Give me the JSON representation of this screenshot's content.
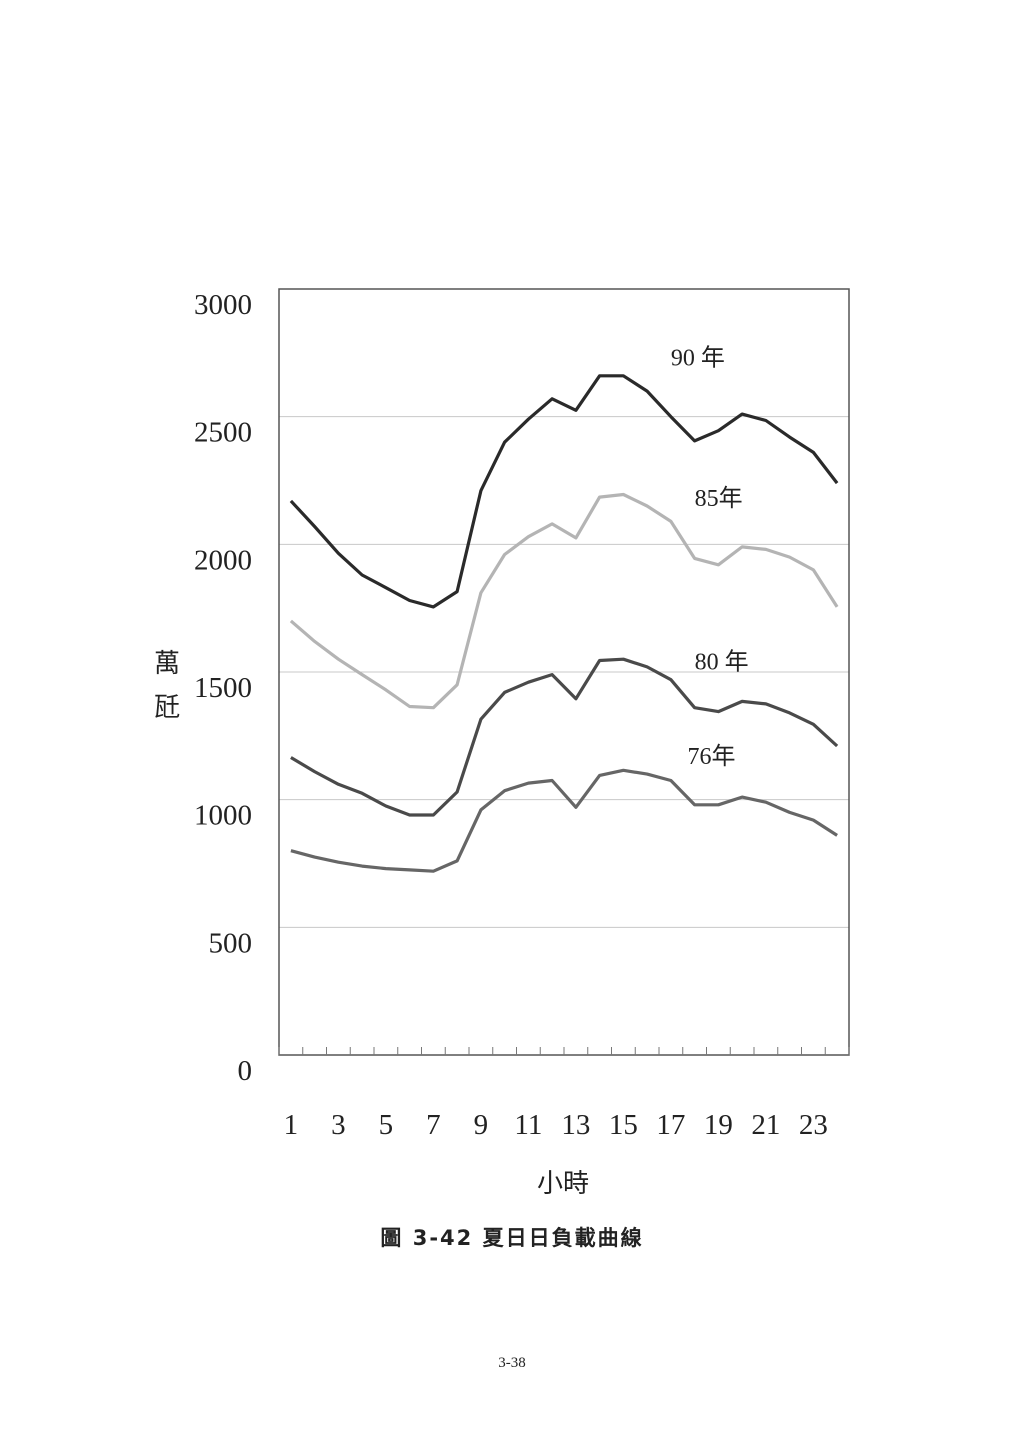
{
  "chart_data": {
    "type": "line",
    "title": "",
    "xlabel": "小時",
    "ylabel": "萬瓩",
    "ylim": [
      0,
      3000
    ],
    "xlim": [
      0.5,
      24.5
    ],
    "y_ticks": [
      0,
      500,
      1000,
      1500,
      2000,
      2500,
      3000
    ],
    "x_ticks": [
      1,
      3,
      5,
      7,
      9,
      11,
      13,
      15,
      17,
      19,
      21,
      23
    ],
    "grid": "horizontal",
    "x": [
      1,
      2,
      3,
      4,
      5,
      6,
      7,
      8,
      9,
      10,
      11,
      12,
      13,
      14,
      15,
      16,
      17,
      18,
      19,
      20,
      21,
      22,
      23,
      24
    ],
    "series": [
      {
        "name": "90 年",
        "color": "#2a2a2a",
        "values": [
          2170,
          2070,
          1965,
          1880,
          1830,
          1780,
          1755,
          1815,
          2210,
          2400,
          2490,
          2570,
          2525,
          2660,
          2660,
          2600,
          2500,
          2405,
          2445,
          2510,
          2485,
          2420,
          2360,
          2240
        ]
      },
      {
        "name": "85年",
        "color": "#b4b4b4",
        "values": [
          1700,
          1620,
          1550,
          1490,
          1430,
          1365,
          1360,
          1450,
          1810,
          1960,
          2030,
          2080,
          2025,
          2185,
          2195,
          2150,
          2090,
          1945,
          1920,
          1990,
          1980,
          1950,
          1900,
          1755
        ]
      },
      {
        "name": "80 年",
        "color": "#4a4a4a",
        "values": [
          1165,
          1110,
          1060,
          1025,
          975,
          940,
          940,
          1030,
          1315,
          1420,
          1460,
          1490,
          1395,
          1545,
          1550,
          1520,
          1470,
          1360,
          1345,
          1385,
          1375,
          1340,
          1295,
          1210
        ]
      },
      {
        "name": "76年",
        "color": "#666666",
        "values": [
          800,
          775,
          755,
          740,
          730,
          725,
          720,
          760,
          960,
          1035,
          1065,
          1075,
          970,
          1095,
          1115,
          1100,
          1075,
          980,
          980,
          1010,
          990,
          950,
          920,
          860
        ]
      }
    ]
  },
  "caption": "圖 3-42 夏日日負載曲線",
  "page_number": "3-38"
}
